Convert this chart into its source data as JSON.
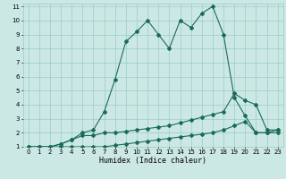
{
  "xlabel": "Humidex (Indice chaleur)",
  "background_color": "#cce8e4",
  "grid_color": "#99ccc6",
  "line_color": "#1a6b5a",
  "xlim": [
    -0.5,
    23.5
  ],
  "ylim": [
    1,
    11.2
  ],
  "xticks": [
    0,
    1,
    2,
    3,
    4,
    5,
    6,
    7,
    8,
    9,
    10,
    11,
    12,
    13,
    14,
    15,
    16,
    17,
    18,
    19,
    20,
    21,
    22,
    23
  ],
  "yticks": [
    1,
    2,
    3,
    4,
    5,
    6,
    7,
    8,
    9,
    10,
    11
  ],
  "line1_x": [
    0,
    1,
    2,
    3,
    4,
    5,
    6,
    7,
    8,
    9,
    10,
    11,
    12,
    13,
    14,
    15,
    16,
    17,
    18,
    19,
    20,
    21,
    22,
    23
  ],
  "line1_y": [
    1.0,
    1.0,
    1.0,
    1.2,
    1.5,
    2.0,
    2.2,
    3.5,
    5.8,
    8.5,
    9.2,
    10.0,
    9.0,
    8.0,
    10.0,
    9.5,
    10.5,
    11.0,
    9.0,
    4.5,
    3.2,
    2.0,
    2.0,
    2.2
  ],
  "line2_x": [
    0,
    1,
    2,
    3,
    4,
    5,
    6,
    7,
    8,
    9,
    10,
    11,
    12,
    13,
    14,
    15,
    16,
    17,
    18,
    19,
    20,
    21,
    22,
    23
  ],
  "line2_y": [
    1.0,
    1.0,
    1.0,
    1.0,
    1.0,
    1.0,
    1.0,
    1.0,
    1.1,
    1.2,
    1.3,
    1.4,
    1.5,
    1.6,
    1.7,
    1.8,
    1.9,
    2.0,
    2.2,
    2.5,
    2.8,
    2.0,
    2.0,
    2.0
  ],
  "line3_x": [
    0,
    1,
    2,
    3,
    4,
    5,
    6,
    7,
    8,
    9,
    10,
    11,
    12,
    13,
    14,
    15,
    16,
    17,
    18,
    19,
    20,
    21,
    22,
    23
  ],
  "line3_y": [
    1.0,
    1.0,
    1.0,
    1.2,
    1.5,
    1.8,
    1.8,
    2.0,
    2.0,
    2.1,
    2.2,
    2.3,
    2.4,
    2.5,
    2.7,
    2.9,
    3.1,
    3.3,
    3.5,
    4.8,
    4.3,
    4.0,
    2.2,
    2.2
  ],
  "marker": "D",
  "markersize": 2,
  "linewidth": 0.8,
  "tick_fontsize": 5,
  "xlabel_fontsize": 6
}
